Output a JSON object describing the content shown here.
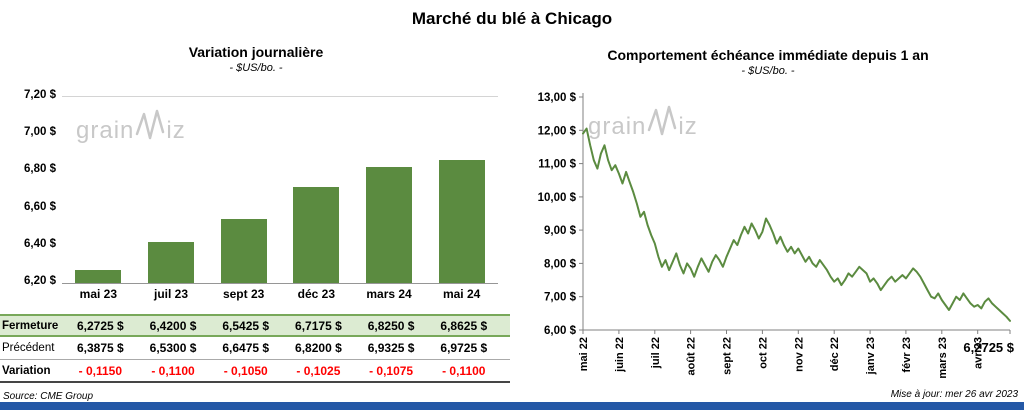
{
  "header": {
    "title": "Marché du blé à Chicago"
  },
  "watermark": {
    "part1": "grain",
    "part2": "iz"
  },
  "footer": {
    "source": "Source: CME Group",
    "updated": "Mise à jour: mer 26 avr 2023"
  },
  "colors": {
    "green": "#5b8b40",
    "negative_red": "#ff0000",
    "fermeture_bg": "#dcebd2",
    "fermeture_border": "#78a85a",
    "bottom_bar": "#2458a6",
    "watermark": "#c8c8c8",
    "axis_gray": "#808080"
  },
  "table": {
    "rows": [
      {
        "label": "Fermeture",
        "style": "fermeture",
        "values": [
          "6,2725  $",
          "6,4200  $",
          "6,5425  $",
          "6,7175  $",
          "6,8250  $",
          "6,8625  $"
        ]
      },
      {
        "label": "Précédent",
        "style": "precedent",
        "values": [
          "6,3875  $",
          "6,5300  $",
          "6,6475  $",
          "6,8200  $",
          "6,9325  $",
          "6,9725  $"
        ]
      },
      {
        "label": "Variation",
        "style": "variation",
        "values": [
          "- 0,1150",
          "- 0,1100",
          "- 0,1050",
          "- 0,1025",
          "- 0,1075",
          "- 0,1100"
        ]
      }
    ]
  },
  "chart_data": [
    {
      "type": "bar",
      "title": "Variation  journalière",
      "subtitle": "- $US/bo. -",
      "categories": [
        "mai 23",
        "juil 23",
        "sept 23",
        "déc 23",
        "mars 24",
        "mai 24"
      ],
      "values": [
        6.2725,
        6.42,
        6.5425,
        6.7175,
        6.825,
        6.8625
      ],
      "ylim": [
        6.2,
        7.2
      ],
      "yticks": [
        7.2,
        7.0,
        6.8,
        6.6,
        6.4,
        6.2
      ],
      "ytick_labels": [
        "7,20 $",
        "7,00 $",
        "6,80 $",
        "6,60 $",
        "6,40 $",
        "6,20 $"
      ],
      "bar_color": "#5b8b40",
      "grid": false,
      "legend": false
    },
    {
      "type": "line",
      "title": "Comportement  échéance  immédiate  depuis 1 an",
      "subtitle": "- $US/bo. -",
      "x_labels": [
        "mai 22",
        "juin 22",
        "juil 22",
        "août 22",
        "sept 22",
        "oct 22",
        "nov 22",
        "déc 22",
        "janv 23",
        "févr 23",
        "mars 23",
        "avr 23"
      ],
      "values": [
        11.9,
        12.05,
        11.55,
        11.1,
        10.85,
        11.3,
        11.55,
        11.1,
        10.8,
        10.95,
        10.7,
        10.4,
        10.75,
        10.45,
        10.15,
        9.8,
        9.4,
        9.55,
        9.15,
        8.85,
        8.6,
        8.2,
        7.9,
        8.1,
        7.8,
        8.05,
        8.3,
        7.95,
        7.7,
        8.0,
        7.85,
        7.6,
        7.9,
        8.15,
        7.95,
        7.75,
        8.05,
        8.25,
        8.1,
        7.9,
        8.2,
        8.45,
        8.7,
        8.55,
        8.85,
        9.1,
        8.9,
        9.2,
        9.0,
        8.75,
        8.95,
        9.35,
        9.15,
        8.9,
        8.6,
        8.8,
        8.55,
        8.35,
        8.5,
        8.3,
        8.45,
        8.25,
        8.05,
        8.2,
        8.0,
        7.9,
        8.1,
        7.95,
        7.8,
        7.6,
        7.45,
        7.55,
        7.35,
        7.5,
        7.7,
        7.6,
        7.75,
        7.9,
        7.8,
        7.7,
        7.45,
        7.55,
        7.4,
        7.2,
        7.35,
        7.5,
        7.6,
        7.45,
        7.55,
        7.65,
        7.55,
        7.7,
        7.85,
        7.75,
        7.6,
        7.4,
        7.2,
        7.0,
        6.95,
        7.1,
        6.9,
        6.75,
        6.6,
        6.8,
        7.0,
        6.9,
        7.1,
        6.95,
        6.8,
        6.7,
        6.75,
        6.65,
        6.85,
        6.95,
        6.8,
        6.7,
        6.6,
        6.5,
        6.4,
        6.2725
      ],
      "ylim": [
        6.0,
        13.0
      ],
      "yticks": [
        13,
        12,
        11,
        10,
        9,
        8,
        7,
        6
      ],
      "ytick_labels": [
        "13,00 $",
        "12,00 $",
        "11,00 $",
        "10,00 $",
        "9,00 $",
        "8,00 $",
        "7,00 $",
        "6,00 $"
      ],
      "last_label": "6,2725 $",
      "line_color": "#5b8b40",
      "grid": false,
      "legend": false
    }
  ]
}
